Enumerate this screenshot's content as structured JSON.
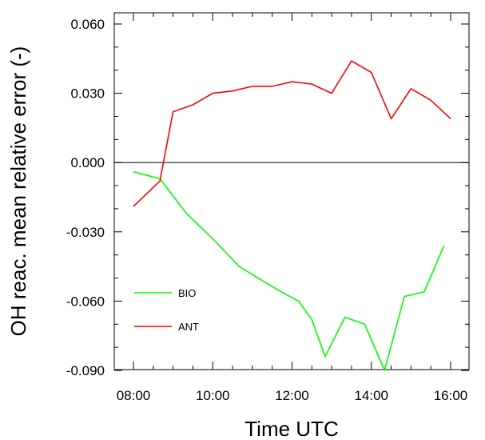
{
  "chart_data": {
    "type": "line",
    "title": "",
    "xlabel": "Time UTC",
    "ylabel": "OH reac. mean relative error (-)",
    "xlim": [
      "08:00",
      "16:00"
    ],
    "ylim": [
      -0.09,
      0.065
    ],
    "x_tick_labels": [
      "08:00",
      "10:00",
      "12:00",
      "14:00",
      "16:00"
    ],
    "y_tick_labels": [
      "0.060",
      "0.030",
      "0.000",
      "-0.030",
      "-0.060",
      "-0.090"
    ],
    "y_ticks": [
      0.06,
      0.03,
      0.0,
      -0.03,
      -0.06,
      -0.09
    ],
    "zero_line": 0.0,
    "grid": false,
    "legend_position": "lower-left",
    "series": [
      {
        "name": "BIO",
        "color": "#00ff00",
        "x": [
          "08:00",
          "08:40",
          "09:20",
          "10:00",
          "10:40",
          "11:20",
          "11:50",
          "12:10",
          "12:30",
          "12:50",
          "13:20",
          "13:50",
          "14:20",
          "14:50",
          "15:20",
          "15:50"
        ],
        "values": [
          -0.004,
          -0.007,
          -0.022,
          -0.033,
          -0.045,
          -0.052,
          -0.057,
          -0.06,
          -0.068,
          -0.084,
          -0.067,
          -0.07,
          -0.09,
          -0.058,
          -0.056,
          -0.036
        ]
      },
      {
        "name": "ANT",
        "color": "#ff0000",
        "x": [
          "08:00",
          "08:40",
          "09:00",
          "09:30",
          "10:00",
          "10:30",
          "11:00",
          "11:30",
          "12:00",
          "12:30",
          "13:00",
          "13:30",
          "14:00",
          "14:30",
          "15:00",
          "15:30",
          "16:00"
        ],
        "values": [
          -0.019,
          -0.008,
          0.022,
          0.025,
          0.03,
          0.031,
          0.033,
          0.033,
          0.035,
          0.034,
          0.03,
          0.044,
          0.039,
          0.019,
          0.032,
          0.027,
          0.019
        ]
      }
    ]
  }
}
